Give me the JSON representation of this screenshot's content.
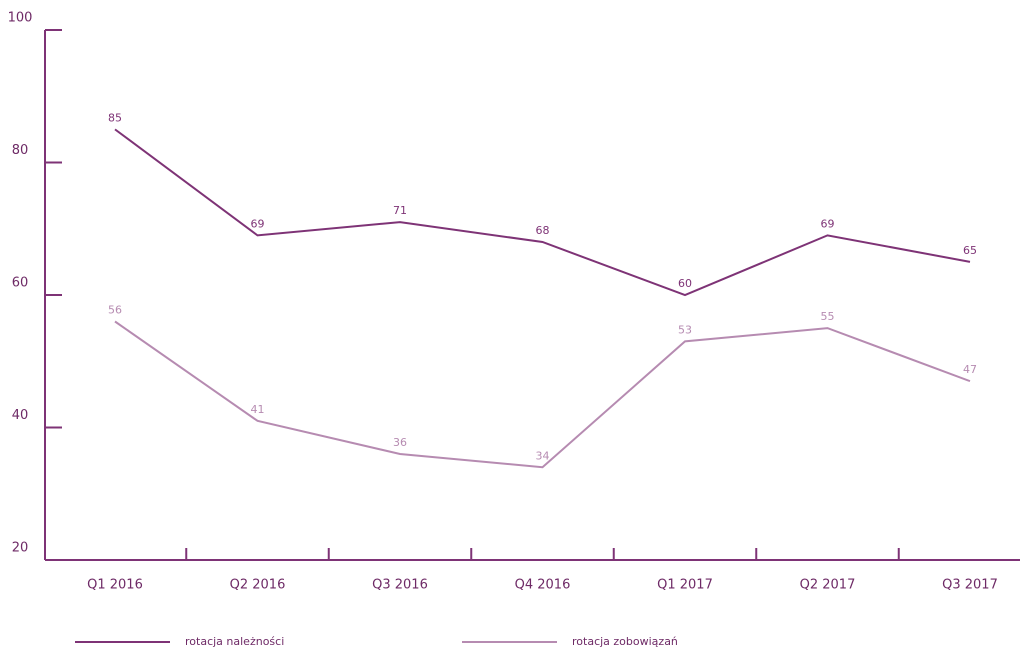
{
  "chart_data": {
    "type": "line",
    "categories": [
      "Q1 2016",
      "Q2 2016",
      "Q3 2016",
      "Q4 2016",
      "Q1 2017",
      "Q2 2017",
      "Q3 2017"
    ],
    "series": [
      {
        "name": "rotacja należności",
        "color": "#7e3376",
        "values": [
          85,
          69,
          71,
          68,
          60,
          69,
          65
        ]
      },
      {
        "name": "rotacja zobowiązań",
        "color": "#b68bb1",
        "values": [
          56,
          41,
          36,
          34,
          53,
          55,
          47
        ]
      }
    ],
    "ylim": [
      20,
      100
    ],
    "yticks": [
      20,
      40,
      60,
      80,
      100
    ],
    "axis_color": "#7e3376",
    "legend": "bottom"
  }
}
